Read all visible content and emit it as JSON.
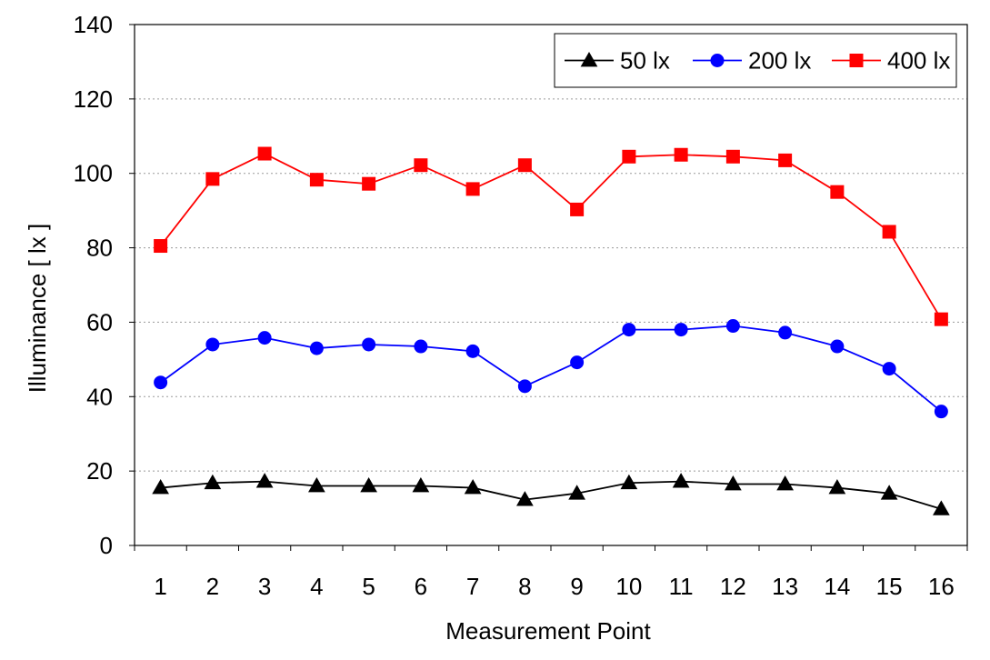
{
  "chart_data": {
    "type": "line",
    "title": "",
    "xlabel": "Measurement Point",
    "ylabel": "Illuminance [ lx ]",
    "categories": [
      "1",
      "2",
      "3",
      "4",
      "5",
      "6",
      "7",
      "8",
      "9",
      "10",
      "11",
      "12",
      "13",
      "14",
      "15",
      "16"
    ],
    "ylim": [
      0,
      140
    ],
    "yticks": [
      0,
      20,
      40,
      60,
      80,
      100,
      120,
      140
    ],
    "grid": "horizontal dotted",
    "legend_position": "top-right",
    "series": [
      {
        "name": "50 lx",
        "marker": "triangle",
        "color": "#000000",
        "values": [
          15.5,
          16.8,
          17.2,
          16.0,
          16.0,
          16.0,
          15.5,
          12.3,
          14.0,
          16.8,
          17.2,
          16.5,
          16.5,
          15.5,
          14.0,
          9.8
        ]
      },
      {
        "name": "200 lx",
        "marker": "circle",
        "color": "#0000ff",
        "values": [
          43.8,
          54.0,
          55.8,
          53.0,
          54.0,
          53.5,
          52.2,
          42.8,
          49.2,
          58.0,
          58.0,
          59.0,
          57.2,
          53.5,
          47.5,
          36.0
        ]
      },
      {
        "name": "400 lx",
        "marker": "square",
        "color": "#ff0000",
        "values": [
          80.5,
          98.5,
          105.3,
          98.3,
          97.2,
          102.2,
          95.8,
          102.2,
          90.3,
          104.5,
          105.0,
          104.5,
          103.5,
          95.0,
          84.3,
          60.8
        ]
      }
    ]
  }
}
